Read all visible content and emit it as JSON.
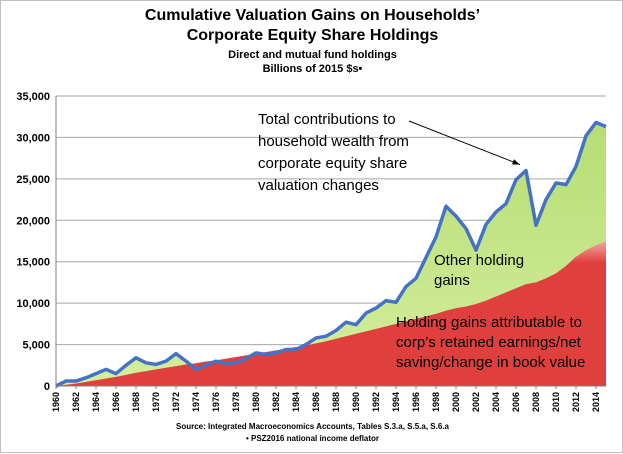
{
  "chart_data": {
    "type": "area",
    "title": "Cumulative Valuation Gains on Households’",
    "title_line2": "Corporate Equity Share Holdings",
    "subtitle": "Direct and mutual fund holdings",
    "subtitle2": "Billions of 2015 $s•",
    "ylim": [
      0,
      35000
    ],
    "yticks": [
      "0",
      "5,000",
      "10,000",
      "15,000",
      "20,000",
      "25,000",
      "30,000",
      "35,000"
    ],
    "ytick_values": [
      0,
      5000,
      10000,
      15000,
      20000,
      25000,
      30000,
      35000
    ],
    "xlim": [
      1960,
      2015
    ],
    "xtick_values": [
      1960,
      1962,
      1964,
      1966,
      1968,
      1970,
      1972,
      1974,
      1976,
      1978,
      1980,
      1982,
      1984,
      1986,
      1988,
      1990,
      1992,
      1994,
      1996,
      1998,
      2000,
      2002,
      2004,
      2006,
      2008,
      2010,
      2012,
      2014
    ],
    "grid": "horizontal",
    "x": [
      1960,
      1961,
      1962,
      1963,
      1964,
      1965,
      1966,
      1967,
      1968,
      1969,
      1970,
      1971,
      1972,
      1973,
      1974,
      1975,
      1976,
      1977,
      1978,
      1979,
      1980,
      1981,
      1982,
      1983,
      1984,
      1985,
      1986,
      1987,
      1988,
      1989,
      1990,
      1991,
      1992,
      1993,
      1994,
      1995,
      1996,
      1997,
      1998,
      1999,
      2000,
      2001,
      2002,
      2003,
      2004,
      2005,
      2006,
      2007,
      2008,
      2009,
      2010,
      2011,
      2012,
      2013,
      2014,
      2015
    ],
    "series": [
      {
        "values": [
          0,
          600,
          600,
          1000,
          1500,
          2000,
          1500,
          2500,
          3400,
          2800,
          2600,
          3000,
          3900,
          3000,
          2000,
          2500,
          3000,
          2700,
          2800,
          3300,
          4000,
          3800,
          4000,
          4400,
          4400,
          5000,
          5800,
          6000,
          6700,
          7700,
          7400,
          8800,
          9400,
          10300,
          10100,
          12000,
          13000,
          15500,
          18000,
          21700,
          20500,
          19000,
          16400,
          19500,
          21000,
          22000,
          24900,
          26000,
          19400,
          22500,
          24500,
          24300,
          26500,
          30200,
          31800,
          31300
        ],
        "color": "#4472c4"
      },
      {
        "values": [
          0,
          150,
          300,
          500,
          700,
          900,
          1100,
          1350,
          1600,
          1800,
          2000,
          2200,
          2400,
          2600,
          2750,
          2950,
          3100,
          3300,
          3500,
          3700,
          3900,
          4100,
          4300,
          4500,
          4700,
          4900,
          5150,
          5400,
          5700,
          6000,
          6300,
          6600,
          6900,
          7200,
          7500,
          7800,
          8100,
          8400,
          8700,
          9100,
          9400,
          9600,
          9900,
          10300,
          10800,
          11300,
          11800,
          12300,
          12500,
          13000,
          13600,
          14500,
          15600,
          16400,
          17000,
          17500
        ],
        "color": "#d9413e"
      }
    ],
    "fill_total": "#b6dd74",
    "fill_other_edge": "#d4ee9d",
    "fill_retained": "#e0403d",
    "fill_retained_edge": "#f2a9a1",
    "annotations": {
      "total": [
        "Total contributions to",
        "household wealth from",
        "corporate equity share",
        "valuation changes"
      ],
      "other": [
        "Other holding",
        "gains"
      ],
      "retained": [
        "Holding gains attributable to",
        "corp’s retained earnings/net",
        "saving/change in book value"
      ]
    },
    "source": "Source: Integrated Macroeconomics Accounts, Tables S.3.a, S.5.a, S.6.a",
    "footnote": "• PSZ2016 national income deflator"
  }
}
